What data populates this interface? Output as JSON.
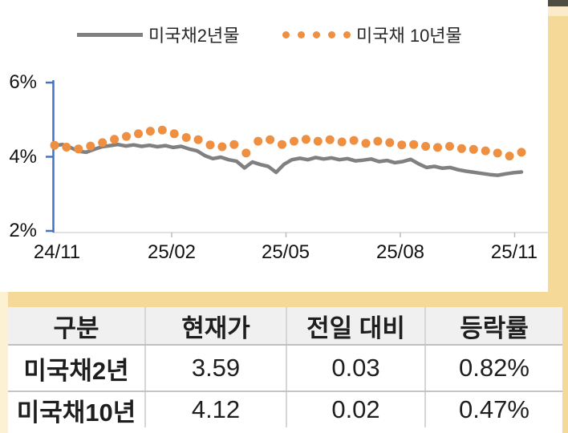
{
  "chart_data": {
    "type": "line",
    "title": "",
    "x_tick_labels": [
      "24/11",
      "25/02",
      "25/05",
      "25/08",
      "25/11"
    ],
    "y_tick_labels": [
      "6%",
      "4%",
      "2%"
    ],
    "y_ticks": [
      6,
      4,
      2
    ],
    "ylim": [
      2,
      6
    ],
    "grid": false,
    "legend_position": "top",
    "series": [
      {
        "name": "미국채2년물",
        "style": "solid",
        "color": "#808080",
        "values": [
          4.3,
          4.33,
          4.25,
          4.15,
          4.12,
          4.2,
          4.27,
          4.3,
          4.33,
          4.29,
          4.32,
          4.28,
          4.31,
          4.27,
          4.3,
          4.25,
          4.28,
          4.21,
          4.16,
          4.03,
          3.95,
          3.99,
          3.92,
          3.88,
          3.7,
          3.86,
          3.79,
          3.74,
          3.58,
          3.8,
          3.92,
          3.96,
          3.92,
          3.98,
          3.94,
          3.97,
          3.92,
          3.95,
          3.89,
          3.91,
          3.94,
          3.87,
          3.9,
          3.84,
          3.87,
          3.93,
          3.81,
          3.71,
          3.74,
          3.69,
          3.71,
          3.65,
          3.61,
          3.58,
          3.55,
          3.52,
          3.5,
          3.54,
          3.57,
          3.59
        ]
      },
      {
        "name": "미국채 10년물",
        "style": "dots",
        "color": "#EE8F41",
        "values": [
          4.31,
          4.26,
          4.21,
          4.29,
          4.38,
          4.47,
          4.55,
          4.62,
          4.69,
          4.72,
          4.62,
          4.52,
          4.46,
          4.32,
          4.27,
          4.33,
          4.1,
          4.42,
          4.46,
          4.33,
          4.42,
          4.47,
          4.42,
          4.46,
          4.4,
          4.44,
          4.36,
          4.42,
          4.38,
          4.32,
          4.33,
          4.28,
          4.25,
          4.28,
          4.22,
          4.2,
          4.16,
          4.1,
          4.02,
          4.12
        ]
      }
    ]
  },
  "table": {
    "headers": [
      "구분",
      "현재가",
      "전일 대비",
      "등락률"
    ],
    "rows": [
      [
        "미국채2년",
        "3.59",
        "0.03",
        "0.82%"
      ],
      [
        "미국채10년",
        "4.12",
        "0.02",
        "0.47%"
      ]
    ]
  },
  "colors": {
    "background_tan": "#F5D998",
    "left_strip_cream": "#FCF1D2",
    "top_cap_dark": "#4F4C41",
    "top_cap_cream": "#FCEBCB",
    "axis_blue": "#4472C4",
    "baseline_gray": "#D9D9D9",
    "series_2y_gray": "#808080",
    "series_10y_orange": "#EE8F41",
    "table_header_bg": "#F0F0F0"
  }
}
